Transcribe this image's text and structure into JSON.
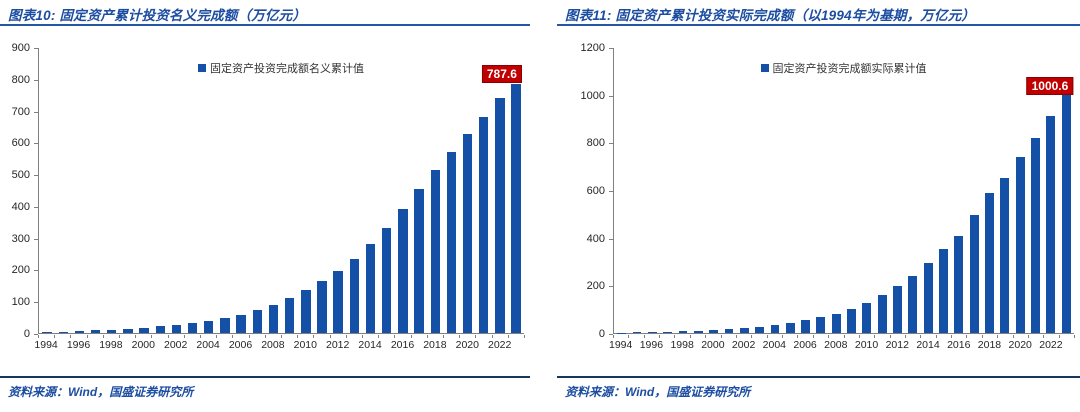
{
  "colors": {
    "bar_blue": "#1450A5",
    "title_blue": "#1C4DA1",
    "header_rule_blue": "#2456A5",
    "footer_rule_navy": "#17365D",
    "callout_red": "#C00000",
    "callout_text": "#ffffff",
    "axis_line_gray": "#808080",
    "axis_text": "#262626"
  },
  "panels": [
    {
      "title": "图表10: 固定资产累计投资名义完成额（万亿元）",
      "source": "资料来源：Wind，国盛证券研究所"
    },
    {
      "title": "图表11: 固定资产累计投资实际完成额（以1994年为基期，万亿元）",
      "source": "资料来源：Wind，国盛证券研究所"
    }
  ],
  "chart_data": [
    {
      "type": "bar",
      "title": "图表10: 固定资产累计投资名义完成额（万亿元）",
      "legend": [
        "固定资产投资完成额名义累计值"
      ],
      "legend_position": "top-center",
      "grid": false,
      "bar_color": "#1450A5",
      "x": [
        1994,
        1995,
        1996,
        1997,
        1998,
        1999,
        2000,
        2001,
        2002,
        2003,
        2004,
        2005,
        2006,
        2007,
        2008,
        2009,
        2010,
        2011,
        2012,
        2013,
        2014,
        2015,
        2016,
        2017,
        2018,
        2019,
        2020,
        2021,
        2022,
        2023
      ],
      "values": [
        1.8,
        3.7,
        5.8,
        8.2,
        11.0,
        14.0,
        17.2,
        21.0,
        25.3,
        31.0,
        38.0,
        47.0,
        58.0,
        71.5,
        88.5,
        109.0,
        135.0,
        163.0,
        196.0,
        234.0,
        280.0,
        333.0,
        391.0,
        455.0,
        515.0,
        571.0,
        628.0,
        682.0,
        741.0,
        787.6
      ],
      "ylim": [
        0,
        900
      ],
      "ytick_step": 100,
      "yticks": [
        0,
        100,
        200,
        300,
        400,
        500,
        600,
        700,
        800,
        900
      ],
      "xtick_labels": [
        "1994",
        "1996",
        "1998",
        "2000",
        "2002",
        "2004",
        "2006",
        "2008",
        "2010",
        "2012",
        "2014",
        "2016",
        "2018",
        "2020",
        "2022"
      ],
      "last_value_label": "787.6"
    },
    {
      "type": "bar",
      "title": "图表11: 固定资产累计投资实际完成额（以1994年为基期，万亿元）",
      "legend": [
        "固定资产投资完成额实际累计值"
      ],
      "legend_position": "top-center",
      "grid": false,
      "bar_color": "#1450A5",
      "x": [
        1994,
        1995,
        1996,
        1997,
        1998,
        1999,
        2000,
        2001,
        2002,
        2003,
        2004,
        2005,
        2006,
        2007,
        2008,
        2009,
        2010,
        2011,
        2012,
        2013,
        2014,
        2015,
        2016,
        2017,
        2018,
        2019,
        2020,
        2021,
        2022,
        2023
      ],
      "values": [
        1.2,
        2.5,
        4.0,
        5.8,
        8.0,
        10.5,
        13.5,
        17.0,
        21.5,
        27.0,
        34.0,
        42.5,
        53.0,
        66.0,
        82.0,
        102.0,
        128.0,
        160.0,
        196.0,
        242.0,
        296.0,
        352.0,
        410.0,
        497.0,
        588.0,
        652.0,
        740.0,
        823.0,
        915.0,
        1000.6
      ],
      "ylim": [
        0,
        1200
      ],
      "ytick_step": 200,
      "yticks": [
        0,
        200,
        400,
        600,
        800,
        1000,
        1200
      ],
      "xtick_labels": [
        "1994",
        "1996",
        "1998",
        "2000",
        "2002",
        "2004",
        "2006",
        "2008",
        "2010",
        "2012",
        "2014",
        "2016",
        "2018",
        "2020",
        "2022"
      ],
      "last_value_label": "1000.6"
    }
  ]
}
